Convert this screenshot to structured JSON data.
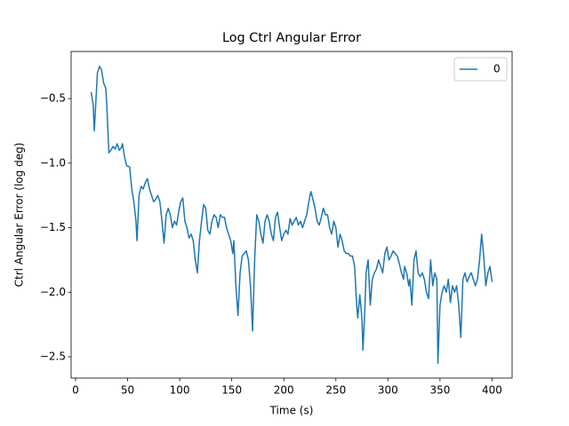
{
  "chart_data": {
    "type": "line",
    "title": "Log Ctrl Angular Error",
    "x_label": "Time (s)",
    "y_label": "Ctrl Angular Error (log deg)",
    "x": [
      15,
      17,
      18,
      20,
      21,
      23,
      25,
      27,
      29,
      30,
      32,
      34,
      36,
      38,
      40,
      42,
      44,
      45,
      47,
      49,
      52,
      54,
      56,
      58,
      59,
      61,
      63,
      65,
      67,
      69,
      71,
      73,
      75,
      77,
      79,
      81,
      83,
      85,
      87,
      89,
      91,
      93,
      95,
      97,
      99,
      101,
      103,
      105,
      107,
      109,
      111,
      113,
      115,
      117,
      119,
      121,
      123,
      125,
      127,
      129,
      131,
      133,
      135,
      137,
      139,
      141,
      143,
      145,
      147,
      149,
      151,
      152,
      154,
      156,
      158,
      160,
      162,
      164,
      166,
      168,
      170,
      172,
      174,
      176,
      178,
      180,
      182,
      184,
      186,
      188,
      190,
      192,
      194,
      196,
      198,
      200,
      202,
      204,
      206,
      208,
      210,
      212,
      214,
      216,
      218,
      220,
      222,
      224,
      226,
      228,
      230,
      232,
      234,
      236,
      238,
      240,
      242,
      244,
      246,
      248,
      250,
      252,
      254,
      256,
      258,
      260,
      262,
      264,
      266,
      268,
      270,
      271,
      273,
      275,
      276,
      278,
      279,
      281,
      283,
      285,
      287,
      289,
      291,
      293,
      295,
      297,
      299,
      301,
      303,
      305,
      307,
      309,
      311,
      313,
      315,
      316,
      318,
      320,
      321,
      323,
      325,
      327,
      329,
      331,
      333,
      335,
      337,
      339,
      341,
      343,
      345,
      347,
      348,
      350,
      352,
      354,
      356,
      358,
      360,
      362,
      364,
      366,
      368,
      370,
      372,
      374,
      376,
      378,
      380,
      382,
      384,
      386,
      388,
      390,
      392,
      394,
      396,
      398,
      400
    ],
    "series": [
      {
        "name": "0",
        "color": "#1f77b4",
        "values": [
          -0.45,
          -0.55,
          -0.75,
          -0.45,
          -0.3,
          -0.25,
          -0.28,
          -0.38,
          -0.42,
          -0.55,
          -0.92,
          -0.9,
          -0.87,
          -0.89,
          -0.85,
          -0.9,
          -0.88,
          -0.85,
          -0.95,
          -1.02,
          -1.03,
          -1.2,
          -1.3,
          -1.45,
          -1.6,
          -1.25,
          -1.18,
          -1.2,
          -1.15,
          -1.12,
          -1.2,
          -1.25,
          -1.3,
          -1.28,
          -1.25,
          -1.3,
          -1.45,
          -1.62,
          -1.4,
          -1.35,
          -1.4,
          -1.5,
          -1.45,
          -1.48,
          -1.38,
          -1.3,
          -1.27,
          -1.45,
          -1.5,
          -1.58,
          -1.55,
          -1.6,
          -1.75,
          -1.85,
          -1.6,
          -1.45,
          -1.32,
          -1.35,
          -1.52,
          -1.55,
          -1.45,
          -1.4,
          -1.42,
          -1.5,
          -1.4,
          -1.42,
          -1.42,
          -1.5,
          -1.55,
          -1.6,
          -1.7,
          -1.6,
          -1.95,
          -2.18,
          -1.85,
          -1.72,
          -1.7,
          -1.68,
          -1.75,
          -1.95,
          -2.3,
          -1.75,
          -1.4,
          -1.45,
          -1.55,
          -1.62,
          -1.45,
          -1.4,
          -1.45,
          -1.55,
          -1.6,
          -1.42,
          -1.38,
          -1.5,
          -1.6,
          -1.55,
          -1.52,
          -1.55,
          -1.43,
          -1.48,
          -1.45,
          -1.42,
          -1.48,
          -1.45,
          -1.5,
          -1.45,
          -1.4,
          -1.3,
          -1.22,
          -1.28,
          -1.35,
          -1.45,
          -1.48,
          -1.42,
          -1.35,
          -1.4,
          -1.4,
          -1.5,
          -1.55,
          -1.45,
          -1.5,
          -1.65,
          -1.55,
          -1.6,
          -1.68,
          -1.7,
          -1.7,
          -1.72,
          -1.72,
          -1.8,
          -2.1,
          -2.2,
          -2.02,
          -2.2,
          -2.45,
          -2.1,
          -1.85,
          -1.75,
          -2.1,
          -1.9,
          -1.85,
          -1.82,
          -1.75,
          -1.8,
          -1.85,
          -1.7,
          -1.65,
          -1.75,
          -1.72,
          -1.68,
          -1.7,
          -1.72,
          -1.78,
          -1.85,
          -1.9,
          -1.8,
          -1.85,
          -1.95,
          -1.9,
          -2.1,
          -1.75,
          -1.68,
          -1.85,
          -1.88,
          -1.85,
          -1.9,
          -2.0,
          -2.05,
          -1.75,
          -1.95,
          -1.85,
          -1.9,
          -2.55,
          -2.1,
          -2.0,
          -1.95,
          -2.0,
          -1.9,
          -2.08,
          -1.95,
          -2.0,
          -1.95,
          -2.1,
          -2.35,
          -1.9,
          -1.85,
          -1.92,
          -1.88,
          -1.85,
          -1.9,
          -1.95,
          -1.9,
          -1.75,
          -1.55,
          -1.72,
          -1.95,
          -1.85,
          -1.8,
          -1.92
        ]
      }
    ],
    "xlim": [
      -4.25,
      419.25
    ],
    "ylim": [
      -2.665,
      -0.135
    ],
    "xticks": [
      0,
      50,
      100,
      150,
      200,
      250,
      300,
      350,
      400
    ],
    "yticks": [
      {
        "value": -2.5,
        "label": "−2.5"
      },
      {
        "value": -2.0,
        "label": "−2.0"
      },
      {
        "value": -1.5,
        "label": "−1.5"
      },
      {
        "value": -1.0,
        "label": "−1.0"
      },
      {
        "value": -0.5,
        "label": "−0.5"
      }
    ],
    "legend": "upper right"
  }
}
